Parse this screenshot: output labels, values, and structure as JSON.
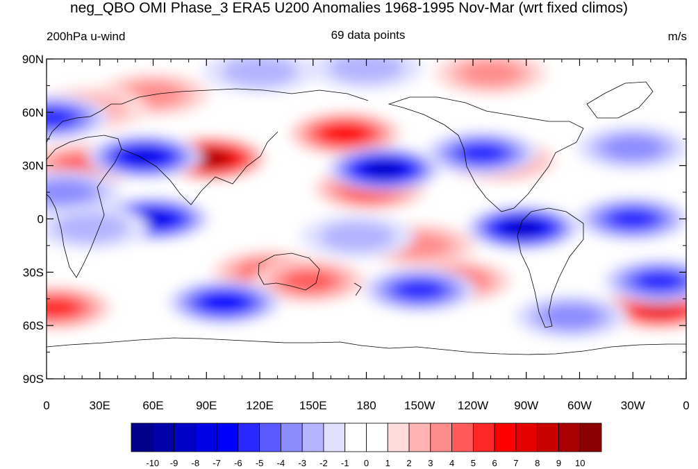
{
  "title": "neg_QBO OMI Phase_3 ERA5 U200 Anomalies 1968-1995 Nov-Mar (wrt fixed climos)",
  "left_string": "200hPa u-wind",
  "center_string": "69 data points",
  "right_string": "m/s",
  "y_ticks": [
    "90N",
    "60N",
    "30N",
    "0",
    "30S",
    "60S",
    "90S"
  ],
  "x_ticks": [
    "0",
    "30E",
    "60E",
    "90E",
    "120E",
    "150E",
    "180",
    "150W",
    "120W",
    "90W",
    "60W",
    "30W",
    "0"
  ],
  "colorbar": {
    "labels": [
      "-10",
      "-9",
      "-8",
      "-7",
      "-6",
      "-5",
      "-4",
      "-3",
      "-2",
      "-1",
      "0",
      "1",
      "2",
      "3",
      "4",
      "5",
      "6",
      "7",
      "8",
      "9",
      "10"
    ],
    "colors": [
      "#00008b",
      "#0000aa",
      "#0000c8",
      "#0000e6",
      "#0000ff",
      "#2828ff",
      "#5a5aff",
      "#8c8cff",
      "#b4b4ff",
      "#e1e1ff",
      "#ffffff",
      "#ffffff",
      "#ffdcdc",
      "#ffb4b4",
      "#ff8c8c",
      "#ff5a5a",
      "#ff2828",
      "#ff0000",
      "#e60000",
      "#c80000",
      "#aa0000",
      "#8b0000"
    ]
  },
  "anomaly_centers": [
    {
      "lon": 92,
      "lat": 34,
      "value": 9
    },
    {
      "lon": 168,
      "lat": 48,
      "value": 6
    },
    {
      "lon": 182,
      "lat": 17,
      "value": 5
    },
    {
      "lon": 125,
      "lat": -30,
      "value": 4
    },
    {
      "lon": 148,
      "lat": -35,
      "value": 4
    },
    {
      "lon": 210,
      "lat": -15,
      "value": 3
    },
    {
      "lon": 230,
      "lat": -35,
      "value": 4
    },
    {
      "lon": 255,
      "lat": 33,
      "value": 4
    },
    {
      "lon": 345,
      "lat": -50,
      "value": 7
    },
    {
      "lon": 5,
      "lat": -50,
      "value": 5
    },
    {
      "lon": 20,
      "lat": 30,
      "value": 4
    },
    {
      "lon": 250,
      "lat": 82,
      "value": 3
    },
    {
      "lon": 60,
      "lat": 70,
      "value": 3
    },
    {
      "lon": 25,
      "lat": 62,
      "value": 2
    },
    {
      "lon": 190,
      "lat": 28,
      "value": -8
    },
    {
      "lon": 55,
      "lat": 35,
      "value": -7
    },
    {
      "lon": 60,
      "lat": 0,
      "value": -7
    },
    {
      "lon": 268,
      "lat": -5,
      "value": -8
    },
    {
      "lon": 330,
      "lat": 0,
      "value": -5
    },
    {
      "lon": 100,
      "lat": -47,
      "value": -6
    },
    {
      "lon": 210,
      "lat": -40,
      "value": -5
    },
    {
      "lon": 345,
      "lat": -35,
      "value": -5
    },
    {
      "lon": 3,
      "lat": 57,
      "value": -5
    },
    {
      "lon": 245,
      "lat": 37,
      "value": -5
    },
    {
      "lon": 330,
      "lat": 40,
      "value": -3
    },
    {
      "lon": 180,
      "lat": 85,
      "value": -2
    },
    {
      "lon": 120,
      "lat": 83,
      "value": -2
    },
    {
      "lon": 10,
      "lat": 15,
      "value": -3
    },
    {
      "lon": 25,
      "lat": -5,
      "value": -2
    },
    {
      "lon": 175,
      "lat": -10,
      "value": -2
    },
    {
      "lon": 295,
      "lat": -55,
      "value": -3
    }
  ]
}
